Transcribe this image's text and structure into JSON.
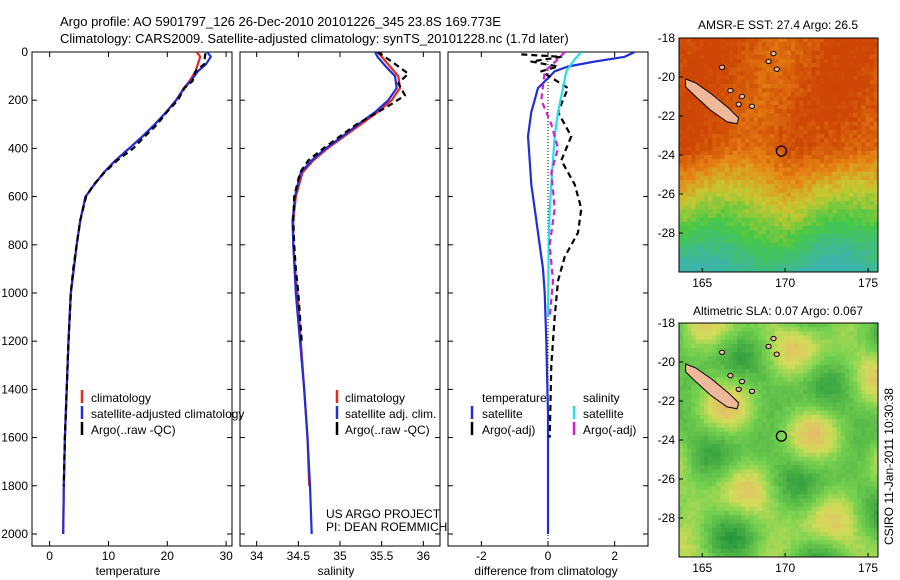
{
  "header": {
    "line1": "Argo profile: AO 5901797_126 26-Dec-2010 20101226_345 23.8S 169.773E",
    "line2": "Climatology: CARS2009. Satellite-adjusted climatology: synTS_20101228.nc (1.7d later)"
  },
  "side_stamp": "CSIRO 11-Jan-2011 10:30:38",
  "project_note": {
    "line1": "US ARGO PROJECT",
    "line2": "PI: DEAN ROEMMICH"
  },
  "colors": {
    "climatology": "#e8281e",
    "satellite": "#1f2fd8",
    "argo": "#000000",
    "satellite_salinity": "#22e0e6",
    "argo_adj_salinity": "#d020d0",
    "land": "#f0b89a"
  },
  "chart_data": [
    {
      "type": "line",
      "panel": "temperature",
      "title": "",
      "xlabel": "temperature",
      "ylabel": "",
      "xlim": [
        -3,
        31
      ],
      "ylim": [
        2050,
        0
      ],
      "xticks": [
        0,
        10,
        20,
        30
      ],
      "yticks": [
        0,
        200,
        400,
        600,
        800,
        1000,
        1200,
        1400,
        1600,
        1800,
        2000
      ],
      "legend": [
        "climatology",
        "satellite-adjusted climatology",
        "Argo(..raw -QC)"
      ],
      "series": [
        {
          "name": "climatology",
          "color_key": "climatology",
          "dash": false,
          "x": [
            25,
            25.6,
            25.2,
            24.8,
            23.8,
            22.8,
            21.5,
            19.8,
            17.9,
            15.8,
            13.5,
            11.2,
            9.2,
            7.6,
            6.1,
            5.2,
            4.6,
            4.1,
            3.6,
            3.2,
            2.9,
            2.6,
            2.4,
            2.3
          ],
          "y": [
            0,
            20,
            50,
            80,
            120,
            150,
            200,
            250,
            300,
            350,
            400,
            450,
            500,
            550,
            600,
            700,
            800,
            900,
            1000,
            1200,
            1400,
            1600,
            1800,
            2000
          ]
        },
        {
          "name": "satellite-adjusted climatology",
          "color_key": "satellite",
          "dash": false,
          "x": [
            26.8,
            27.4,
            26.6,
            25.2,
            24.0,
            22.9,
            21.5,
            19.8,
            17.9,
            15.8,
            13.5,
            11.2,
            9.2,
            7.6,
            6.1,
            5.2,
            4.6,
            4.1,
            3.6,
            3.2,
            2.9,
            2.6,
            2.4,
            2.3
          ],
          "y": [
            0,
            20,
            50,
            80,
            120,
            150,
            200,
            250,
            300,
            350,
            400,
            450,
            500,
            550,
            600,
            700,
            800,
            900,
            1000,
            1200,
            1400,
            1600,
            1800,
            2000
          ]
        },
        {
          "name": "Argo(..raw -QC)",
          "color_key": "argo",
          "dash": true,
          "x": [
            26.5,
            26.4,
            26.3,
            24.8,
            24.3,
            22.9,
            21.8,
            19.9,
            18.3,
            16.2,
            14.2,
            11.5,
            9.3,
            7.5,
            6.2,
            5.2,
            4.6,
            4.0,
            3.6,
            3.2,
            2.9,
            2.6,
            2.4
          ],
          "y": [
            5,
            20,
            50,
            80,
            120,
            150,
            200,
            250,
            300,
            350,
            400,
            450,
            500,
            550,
            600,
            700,
            800,
            900,
            1000,
            1200,
            1400,
            1600,
            1800
          ]
        }
      ]
    },
    {
      "type": "line",
      "panel": "salinity",
      "title": "",
      "xlabel": "salinity",
      "ylabel": "",
      "xlim": [
        33.8,
        36.2
      ],
      "ylim": [
        2050,
        0
      ],
      "xticks": [
        34,
        34.5,
        35,
        35.5,
        36
      ],
      "yticks": [
        0,
        200,
        400,
        600,
        800,
        1000,
        1200,
        1400,
        1600,
        1800,
        2000
      ],
      "legend": [
        "climatology",
        "satellite adj. clim.",
        "Argo(..raw -QC)"
      ],
      "series": [
        {
          "name": "climatology",
          "color_key": "climatology",
          "dash": false,
          "x": [
            35.45,
            35.5,
            35.6,
            35.7,
            35.72,
            35.62,
            35.45,
            35.25,
            35.05,
            34.85,
            34.68,
            34.55,
            34.47,
            34.44,
            34.44,
            34.46,
            34.49,
            34.53,
            34.57,
            34.61,
            34.63
          ],
          "y": [
            0,
            20,
            60,
            100,
            150,
            200,
            250,
            300,
            350,
            400,
            450,
            500,
            600,
            700,
            800,
            900,
            1000,
            1200,
            1400,
            1600,
            1800
          ]
        },
        {
          "name": "satellite adj. clim.",
          "color_key": "satellite",
          "dash": false,
          "x": [
            35.42,
            35.45,
            35.55,
            35.66,
            35.68,
            35.58,
            35.42,
            35.22,
            35.03,
            34.83,
            34.66,
            34.53,
            34.46,
            34.43,
            34.44,
            34.47,
            34.52,
            34.57,
            34.61,
            34.64,
            34.66
          ],
          "y": [
            0,
            20,
            60,
            100,
            150,
            200,
            250,
            300,
            350,
            400,
            450,
            500,
            600,
            700,
            800,
            1000,
            1200,
            1400,
            1600,
            1800,
            2000
          ]
        },
        {
          "name": "Argo(..raw -QC)",
          "color_key": "argo",
          "dash": true,
          "x": [
            35.45,
            35.62,
            35.82,
            35.7,
            35.78,
            35.6,
            35.4,
            35.2,
            35.0,
            34.8,
            34.62,
            34.52,
            34.45,
            34.44,
            34.45,
            34.47,
            34.5,
            34.54
          ],
          "y": [
            0,
            40,
            90,
            130,
            180,
            220,
            260,
            300,
            350,
            400,
            450,
            500,
            600,
            700,
            800,
            900,
            1000,
            1200
          ]
        }
      ]
    },
    {
      "type": "line",
      "panel": "difference",
      "title": "",
      "xlabel": "difference from climatology",
      "ylabel": "",
      "xlim": [
        -3,
        3
      ],
      "ylim": [
        2050,
        0
      ],
      "xticks": [
        -2,
        0,
        2
      ],
      "yticks": [
        0,
        200,
        400,
        600,
        800,
        1000,
        1200,
        1400,
        1600,
        1800,
        2000
      ],
      "legend_groups": [
        "temperature",
        "salinity"
      ],
      "legend": [
        "satellite",
        "Argo(-adj)",
        "satellite",
        "Argo(-adj)"
      ],
      "series": [
        {
          "name": "temperature satellite",
          "color_key": "satellite",
          "dash": false,
          "x": [
            2.6,
            2.3,
            1.4,
            0.6,
            0.2,
            -0.3,
            -0.5,
            -0.6,
            -0.55,
            -0.5,
            -0.4,
            -0.3,
            -0.15,
            -0.1,
            -0.05,
            0,
            0
          ],
          "y": [
            0,
            20,
            40,
            60,
            80,
            150,
            250,
            350,
            450,
            550,
            650,
            750,
            900,
            1000,
            1200,
            1500,
            2000
          ]
        },
        {
          "name": "temperature Argo(-adj)",
          "color_key": "argo",
          "dash": true,
          "x": [
            -0.8,
            0.4,
            -0.5,
            0.3,
            -0.2,
            0.6,
            0.3,
            0.7,
            0.4,
            0.8,
            1.0,
            0.9,
            0.5,
            0.3,
            0.2,
            0.1,
            0.05
          ],
          "y": [
            10,
            20,
            40,
            60,
            80,
            150,
            250,
            350,
            450,
            550,
            650,
            750,
            850,
            950,
            1100,
            1300,
            1600
          ]
        },
        {
          "name": "salinity satellite",
          "color_key": "satellite_salinity",
          "dash": false,
          "x": [
            1.0,
            0.8,
            0.55,
            0.45,
            0.3,
            0.2,
            0.15,
            0.1,
            0.05,
            0.02,
            0
          ],
          "y": [
            0,
            30,
            80,
            150,
            250,
            350,
            450,
            550,
            650,
            800,
            1100
          ]
        },
        {
          "name": "salinity Argo(-adj)",
          "color_key": "argo_adj_salinity",
          "dash": true,
          "x": [
            0.5,
            0.3,
            -0.1,
            -0.2,
            0.1,
            0.3,
            0.1,
            0.2,
            0.05,
            0.15,
            0.05
          ],
          "y": [
            0,
            30,
            80,
            200,
            300,
            400,
            500,
            650,
            800,
            950,
            1100
          ]
        }
      ]
    },
    {
      "type": "heatmap",
      "panel": "sst_map",
      "title": "AMSR-E SST: 27.4 Argo: 26.5",
      "xlim": [
        163.6,
        175.6
      ],
      "ylim": [
        -30,
        -18
      ],
      "xticks": [
        165,
        170,
        175
      ],
      "yticks": [
        -18,
        -20,
        -22,
        -24,
        -26,
        -28
      ],
      "float_position": [
        169.773,
        -23.8
      ]
    },
    {
      "type": "heatmap",
      "panel": "sla_map",
      "title": "Altimetric SLA: 0.07 Argo: 0.067",
      "xlim": [
        163.6,
        175.6
      ],
      "ylim": [
        -30,
        -18
      ],
      "xticks": [
        165,
        170,
        175
      ],
      "yticks": [
        -18,
        -20,
        -22,
        -24,
        -26,
        -28
      ],
      "float_position": [
        169.773,
        -23.8
      ]
    }
  ]
}
